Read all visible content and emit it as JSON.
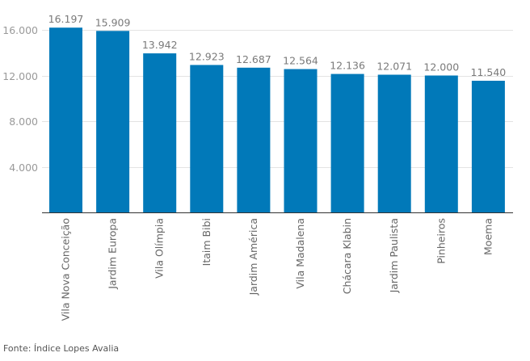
{
  "chart_data": {
    "type": "bar",
    "title": "",
    "xlabel": "",
    "ylabel": "",
    "categories": [
      "Vila Nova Conceição",
      "Jardim Europa",
      "Vila Olímpia",
      "Itaim Bibi",
      "Jardim América",
      "Vila Madalena",
      "Chácara Klabin",
      "Jardim Paulista",
      "Pinheiros",
      "Moema"
    ],
    "values": [
      16197,
      15909,
      13942,
      12923,
      12687,
      12564,
      12136,
      12071,
      12000,
      11540
    ],
    "value_labels": [
      "16.197",
      "15.909",
      "13.942",
      "12.923",
      "12.687",
      "12.564",
      "12.136",
      "12.071",
      "12.000",
      "11.540"
    ],
    "ylim": [
      0,
      16000
    ],
    "yticks": [
      4000,
      8000,
      12000,
      16000
    ],
    "ytick_labels": [
      "4.000",
      "8.000",
      "12.000",
      "16.000"
    ],
    "grid": true,
    "bar_color": "#0179b9"
  },
  "source": "Fonte: Índice Lopes Avalia"
}
